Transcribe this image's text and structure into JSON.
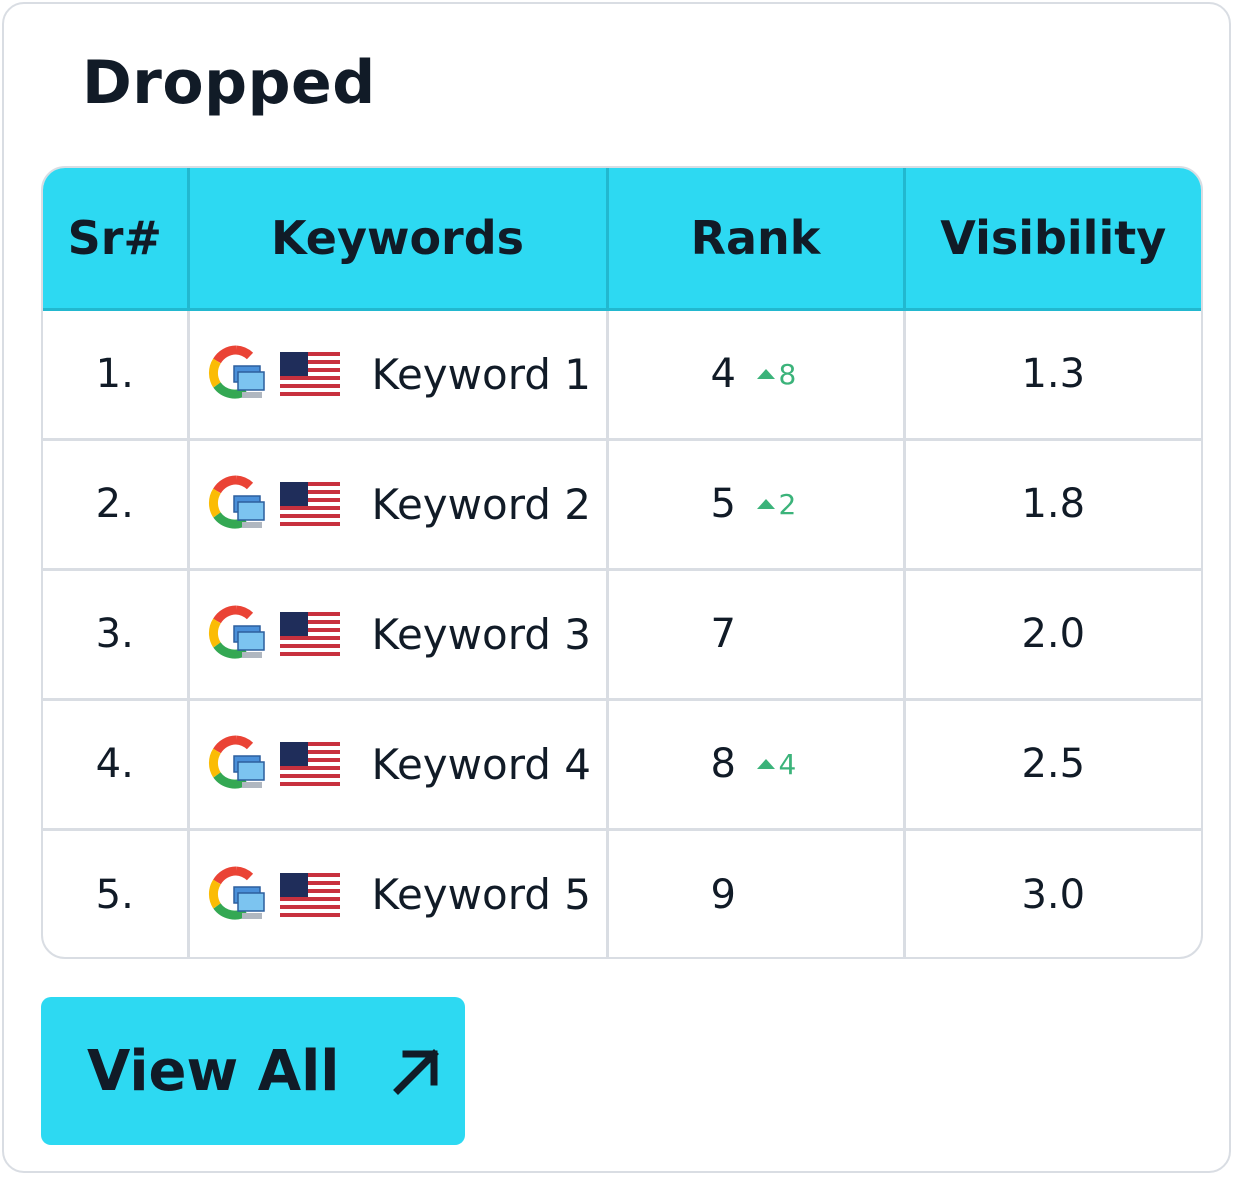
{
  "title": "Dropped",
  "table": {
    "headers": [
      "Sr#",
      "Keywords",
      "Rank",
      "Visibility"
    ],
    "rows": [
      {
        "sr": "1.",
        "keyword": "Keyword 1",
        "rank": "4",
        "delta": "8",
        "visibility": "1.3"
      },
      {
        "sr": "2.",
        "keyword": "Keyword 2",
        "rank": "5",
        "delta": "2",
        "visibility": "1.8"
      },
      {
        "sr": "3.",
        "keyword": "Keyword 3",
        "rank": "7",
        "delta": "",
        "visibility": "2.0"
      },
      {
        "sr": "4.",
        "keyword": "Keyword 4",
        "rank": "8",
        "delta": "4",
        "visibility": "2.5"
      },
      {
        "sr": "5.",
        "keyword": "Keyword 5",
        "rank": "9",
        "delta": "",
        "visibility": "3.0"
      }
    ],
    "row_icons": [
      "google-desktop-icon",
      "us-flag-icon"
    ]
  },
  "button": {
    "label": "View All",
    "icon": "arrow-up-right-icon"
  },
  "colors": {
    "accent": "#2dd9f2",
    "text": "#111b27",
    "positive": "#3bb37a",
    "border": "#d9dde3"
  }
}
